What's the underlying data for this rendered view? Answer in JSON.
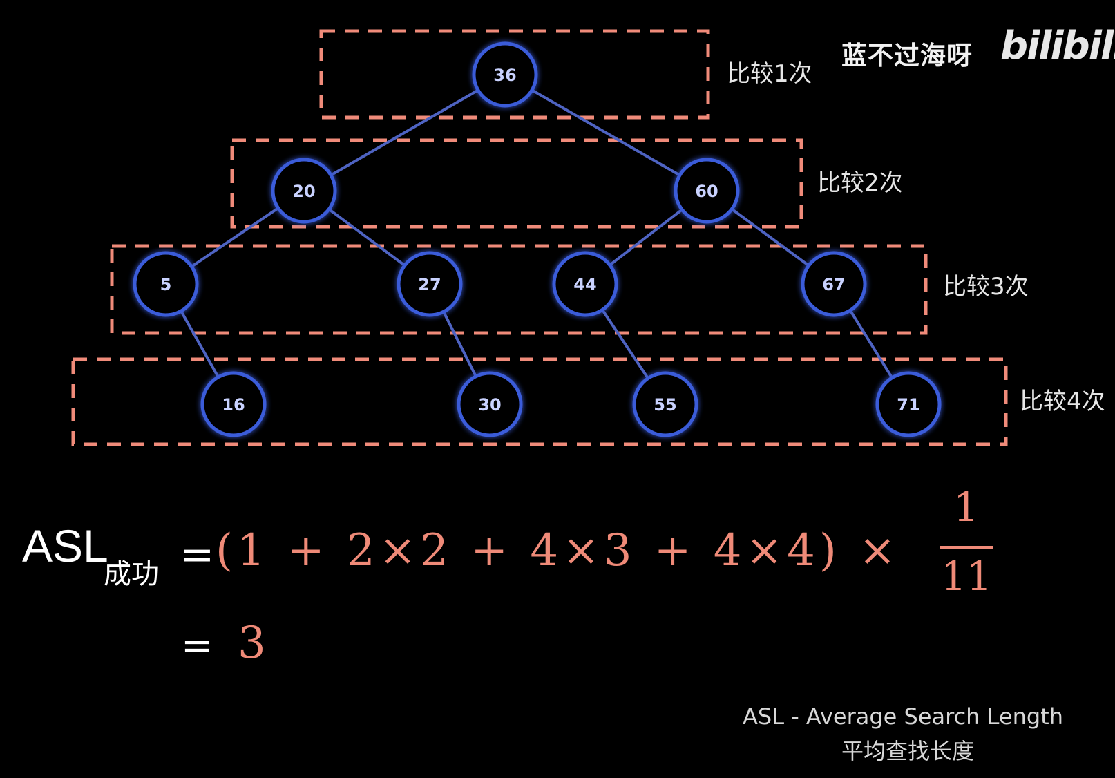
{
  "watermark": {
    "author": "蓝不过海呀",
    "logo": "bilibili"
  },
  "tree": {
    "nodes": [
      {
        "id": "n36",
        "label": "36",
        "level": 1
      },
      {
        "id": "n20",
        "label": "20",
        "level": 2
      },
      {
        "id": "n60",
        "label": "60",
        "level": 2
      },
      {
        "id": "n5",
        "label": "5",
        "level": 3
      },
      {
        "id": "n27",
        "label": "27",
        "level": 3
      },
      {
        "id": "n44",
        "label": "44",
        "level": 3
      },
      {
        "id": "n67",
        "label": "67",
        "level": 3
      },
      {
        "id": "n16",
        "label": "16",
        "level": 4
      },
      {
        "id": "n30",
        "label": "30",
        "level": 4
      },
      {
        "id": "n55",
        "label": "55",
        "level": 4
      },
      {
        "id": "n71",
        "label": "71",
        "level": 4
      }
    ],
    "edges": [
      [
        "n36",
        "n20"
      ],
      [
        "n36",
        "n60"
      ],
      [
        "n20",
        "n5"
      ],
      [
        "n20",
        "n27"
      ],
      [
        "n60",
        "n44"
      ],
      [
        "n60",
        "n67"
      ],
      [
        "n5",
        "n16"
      ],
      [
        "n27",
        "n30"
      ],
      [
        "n44",
        "n55"
      ],
      [
        "n67",
        "n71"
      ]
    ],
    "level_labels": [
      "比较1次",
      "比较2次",
      "比较3次",
      "比较4次"
    ],
    "colors": {
      "node_stroke": "#3a5bd9",
      "node_glow": "#5a7bff",
      "edge": "#4e63c2",
      "box": "#f08b7a",
      "node_text": "#c9d2ff"
    }
  },
  "formula": {
    "lhs_main": "ASL",
    "lhs_sub": "成功",
    "eq": "=",
    "expr": "(1 + 2×2 + 4×3 + 4×4) ×",
    "numerator": "1",
    "denominator": "11",
    "result_eq": "=",
    "result": "3",
    "color": "#ef8a78"
  },
  "caption": {
    "line1": "ASL - Average Search Length",
    "line2": "平均查找长度"
  }
}
